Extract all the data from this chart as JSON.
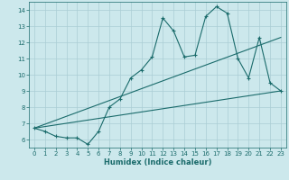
{
  "xlabel": "Humidex (Indice chaleur)",
  "background_color": "#cce8ec",
  "grid_color": "#aacdd4",
  "line_color": "#1a6b6b",
  "xlim": [
    -0.5,
    23.5
  ],
  "ylim": [
    5.5,
    14.5
  ],
  "yticks": [
    6,
    7,
    8,
    9,
    10,
    11,
    12,
    13,
    14
  ],
  "xticks": [
    0,
    1,
    2,
    3,
    4,
    5,
    6,
    7,
    8,
    9,
    10,
    11,
    12,
    13,
    14,
    15,
    16,
    17,
    18,
    19,
    20,
    21,
    22,
    23
  ],
  "line1_x": [
    0,
    1,
    2,
    3,
    4,
    5,
    6,
    7,
    8,
    9,
    10,
    11,
    12,
    13,
    14,
    15,
    16,
    17,
    18,
    19,
    20,
    21,
    22,
    23
  ],
  "line1_y": [
    6.7,
    6.5,
    6.2,
    6.1,
    6.1,
    5.7,
    6.5,
    8.0,
    8.5,
    9.8,
    10.3,
    11.1,
    13.5,
    12.7,
    11.1,
    11.2,
    13.6,
    14.2,
    13.8,
    11.0,
    9.8,
    12.3,
    9.5,
    9.0
  ],
  "line2_x": [
    0,
    23
  ],
  "line2_y": [
    6.7,
    12.3
  ],
  "line3_x": [
    0,
    23
  ],
  "line3_y": [
    6.7,
    9.0
  ]
}
